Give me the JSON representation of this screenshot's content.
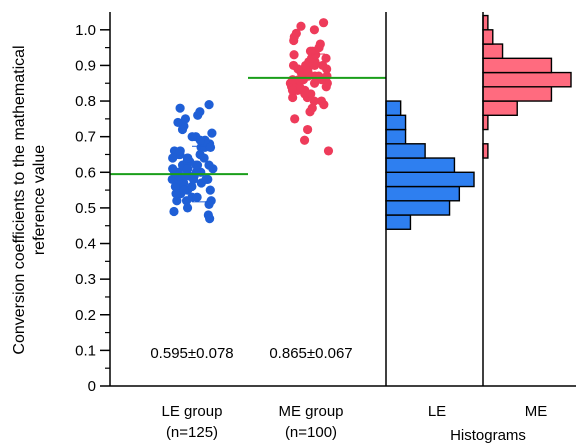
{
  "chart_data": {
    "type": "scatter",
    "title": "",
    "ylabel": "Conversion coefficients to the mathematical reference value",
    "ylabel_lines": [
      "Conversion coefficients to the mathematical",
      "reference value"
    ],
    "ylim": [
      0,
      1.05
    ],
    "yticks": [
      "0",
      "0.1",
      "0.2",
      "0.3",
      "0.4",
      "0.5",
      "0.6",
      "0.7",
      "0.8",
      "0.9",
      "1.0"
    ],
    "grid": false,
    "categories": [
      {
        "line1": "LE group",
        "line2": "(n=125)"
      },
      {
        "line1": "ME group",
        "line2": "(n=100)"
      }
    ],
    "series": [
      {
        "color": "#1f5fd6",
        "mean_line_color": "#1a9e1a",
        "mean": 0.595,
        "sd": 0.078,
        "annotation": "0.595±0.078",
        "values": [
          0.48,
          0.47,
          0.49,
          0.5,
          0.51,
          0.52,
          0.52,
          0.53,
          0.53,
          0.54,
          0.54,
          0.55,
          0.55,
          0.55,
          0.56,
          0.56,
          0.56,
          0.57,
          0.57,
          0.57,
          0.58,
          0.58,
          0.58,
          0.58,
          0.59,
          0.59,
          0.59,
          0.59,
          0.6,
          0.6,
          0.6,
          0.6,
          0.61,
          0.61,
          0.61,
          0.61,
          0.62,
          0.62,
          0.62,
          0.62,
          0.63,
          0.63,
          0.63,
          0.64,
          0.64,
          0.64,
          0.65,
          0.65,
          0.65,
          0.66,
          0.66,
          0.67,
          0.67,
          0.68,
          0.68,
          0.69,
          0.69,
          0.7,
          0.7,
          0.71,
          0.72,
          0.73,
          0.74,
          0.75,
          0.76,
          0.77,
          0.78,
          0.79,
          0.52,
          0.55,
          0.58,
          0.61,
          0.64,
          0.67
        ]
      },
      {
        "color": "#ee3b5a",
        "mean_line_color": "#1a9e1a",
        "mean": 0.865,
        "sd": 0.067,
        "annotation": "0.865±0.067",
        "values": [
          0.66,
          0.69,
          0.72,
          0.75,
          0.77,
          0.78,
          0.79,
          0.8,
          0.8,
          0.81,
          0.81,
          0.82,
          0.82,
          0.83,
          0.83,
          0.84,
          0.84,
          0.84,
          0.85,
          0.85,
          0.85,
          0.86,
          0.86,
          0.86,
          0.86,
          0.87,
          0.87,
          0.87,
          0.87,
          0.88,
          0.88,
          0.88,
          0.89,
          0.89,
          0.89,
          0.9,
          0.9,
          0.9,
          0.91,
          0.91,
          0.92,
          0.92,
          0.93,
          0.93,
          0.94,
          0.95,
          0.96,
          0.97,
          0.98,
          0.99,
          1.0,
          1.01,
          1.02,
          0.88,
          0.85,
          0.9,
          0.83,
          0.94
        ]
      }
    ],
    "histograms": {
      "label": "Histograms",
      "bin_width": 0.04,
      "panels": [
        {
          "label": "LE",
          "color": "#2e7ff0",
          "bins": [
            {
              "start": 0.44,
              "count": 5
            },
            {
              "start": 0.48,
              "count": 13
            },
            {
              "start": 0.52,
              "count": 15
            },
            {
              "start": 0.56,
              "count": 18
            },
            {
              "start": 0.6,
              "count": 14
            },
            {
              "start": 0.64,
              "count": 8
            },
            {
              "start": 0.68,
              "count": 4
            },
            {
              "start": 0.72,
              "count": 4
            },
            {
              "start": 0.76,
              "count": 3
            }
          ]
        },
        {
          "label": "ME",
          "color": "#ff6b7f",
          "bins": [
            {
              "start": 0.64,
              "count": 1
            },
            {
              "start": 0.72,
              "count": 1
            },
            {
              "start": 0.76,
              "count": 7
            },
            {
              "start": 0.8,
              "count": 14
            },
            {
              "start": 0.84,
              "count": 18
            },
            {
              "start": 0.88,
              "count": 14
            },
            {
              "start": 0.92,
              "count": 4
            },
            {
              "start": 0.96,
              "count": 2
            },
            {
              "start": 1.0,
              "count": 1
            }
          ]
        }
      ]
    }
  }
}
